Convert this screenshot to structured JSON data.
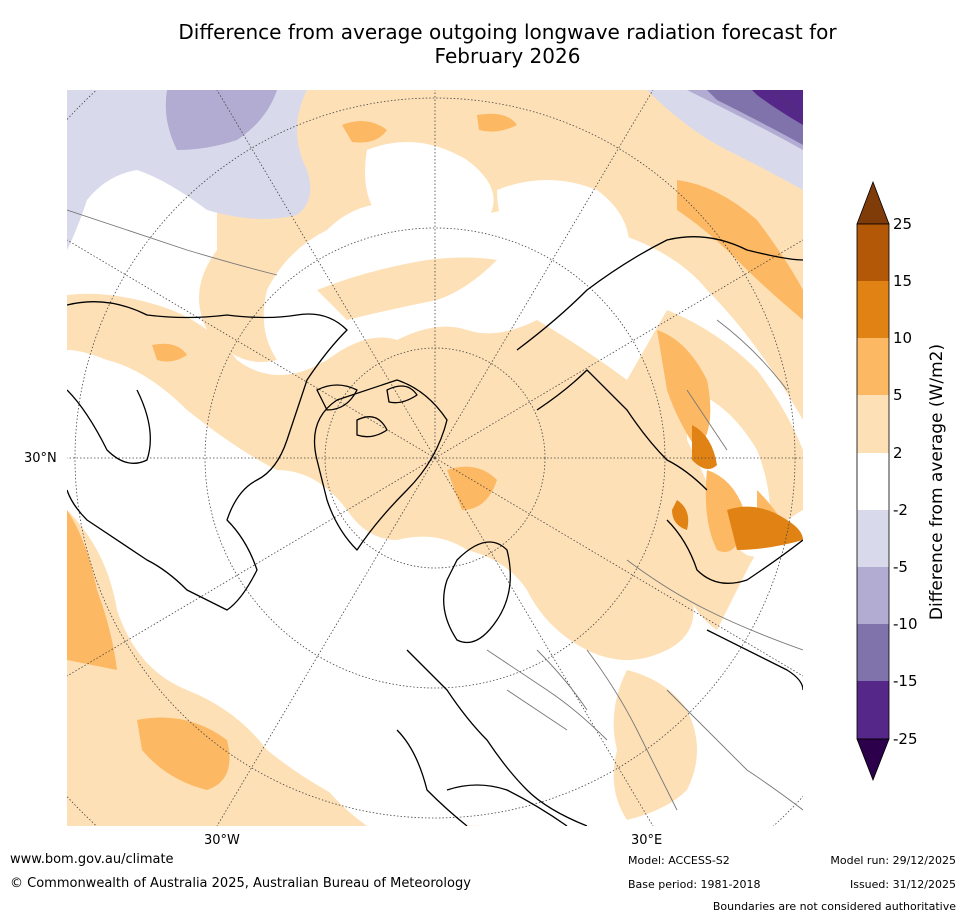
{
  "title_line1": "Difference from average outgoing longwave radiation forecast for",
  "title_line2": "February 2026",
  "map": {
    "projection": "North polar stereographic",
    "lat_label": "30°N",
    "lon_labels": [
      "30°W",
      "30°E"
    ]
  },
  "colorbar": {
    "label": "Difference from average (W/m2)",
    "ticks": [
      "25",
      "15",
      "10",
      "5",
      "2",
      "-2",
      "-5",
      "-10",
      "-15",
      "-25"
    ],
    "colors": {
      "above_25": "#7f3b08",
      "15_25": "#b35806",
      "10_15": "#e08214",
      "5_10": "#fdb863",
      "2_5": "#fee0b6",
      "neutral": "#ffffff",
      "m2_m5": "#d8daeb",
      "m5_m10": "#b2abd2",
      "m10_m15": "#8073ac",
      "m15_m25": "#542788",
      "below_m25": "#2d004b"
    }
  },
  "footer": {
    "website": "www.bom.gov.au/climate",
    "copyright": "© Commonwealth of Australia 2025, Australian Bureau of Meteorology",
    "model": "Model: ACCESS-S2",
    "base_period": "Base period: 1981-2018",
    "model_run": "Model run: 29/12/2025",
    "issued": "Issued: 31/12/2025",
    "disclaimer": "Boundaries are not considered authoritative"
  }
}
